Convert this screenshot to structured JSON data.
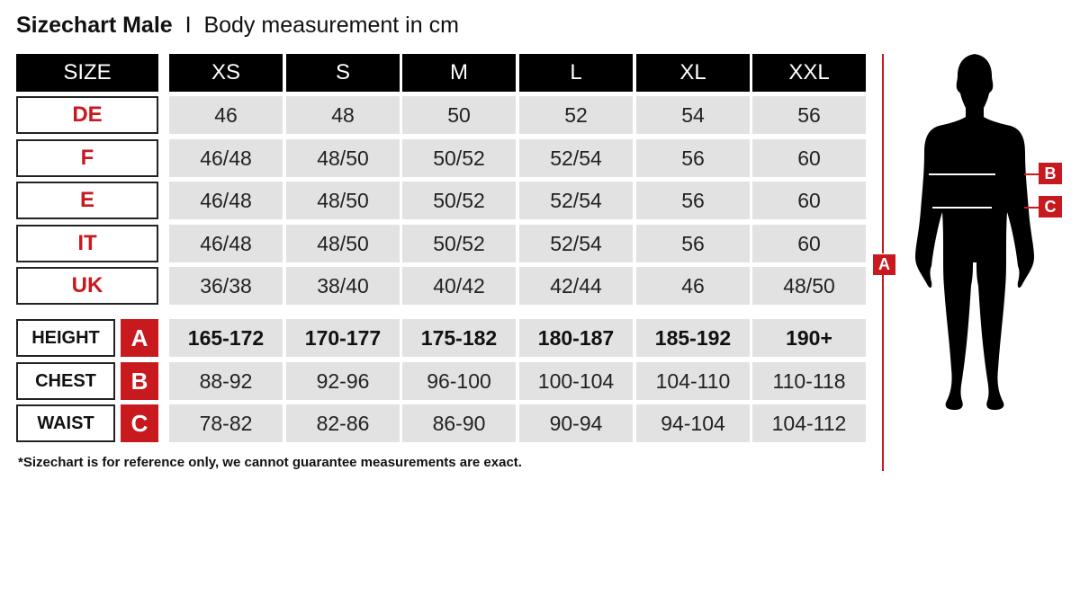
{
  "title": {
    "bold": "Sizechart Male",
    "separator": "I",
    "subtitle": "Body measurement in cm"
  },
  "header": [
    "SIZE",
    "XS",
    "S",
    "M",
    "L",
    "XL",
    "XXL"
  ],
  "size_rows": [
    {
      "label": "DE",
      "values": [
        "46",
        "48",
        "50",
        "52",
        "54",
        "56"
      ]
    },
    {
      "label": "F",
      "values": [
        "46/48",
        "48/50",
        "50/52",
        "52/54",
        "56",
        "60"
      ]
    },
    {
      "label": "E",
      "values": [
        "46/48",
        "48/50",
        "50/52",
        "52/54",
        "56",
        "60"
      ]
    },
    {
      "label": "IT",
      "values": [
        "46/48",
        "48/50",
        "50/52",
        "52/54",
        "56",
        "60"
      ]
    },
    {
      "label": "UK",
      "values": [
        "36/38",
        "38/40",
        "40/42",
        "42/44",
        "46",
        "48/50"
      ]
    }
  ],
  "measure_rows": [
    {
      "label": "HEIGHT",
      "badge": "A",
      "values": [
        "165-172",
        "170-177",
        "175-182",
        "180-187",
        "185-192",
        "190+"
      ]
    },
    {
      "label": "CHEST",
      "badge": "B",
      "values": [
        "88-92",
        "92-96",
        "96-100",
        "100-104",
        "104-110",
        "110-118"
      ]
    },
    {
      "label": "WAIST",
      "badge": "C",
      "values": [
        "78-82",
        "82-86",
        "86-90",
        "90-94",
        "94-104",
        "104-112"
      ]
    }
  ],
  "footnote": "*Sizechart is for reference only, we cannot guarantee measurements are exact.",
  "figure": {
    "height_marker": "A",
    "chest_marker": "B",
    "waist_marker": "C"
  },
  "colors": {
    "accent": "#c8191f",
    "header_bg": "#000000",
    "cell_bg": "#e2e2e2"
  }
}
